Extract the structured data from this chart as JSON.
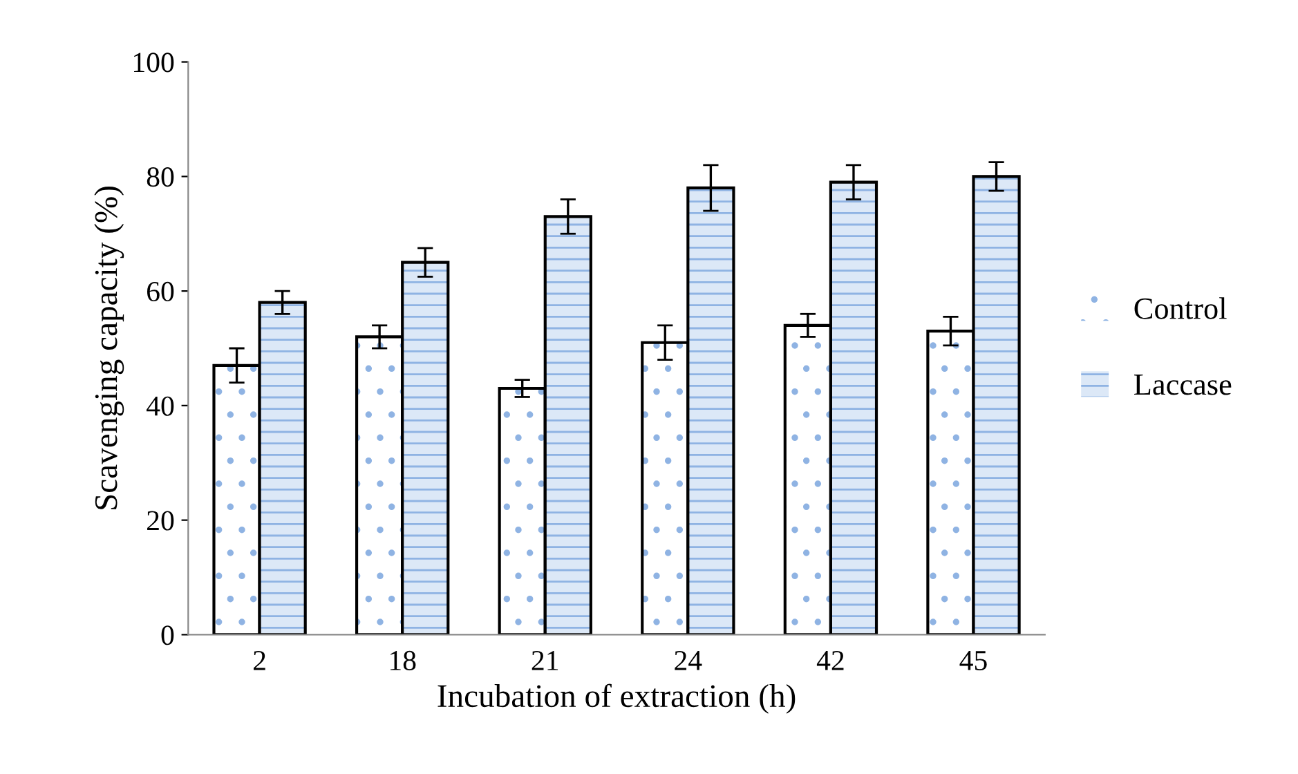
{
  "chart_data": {
    "type": "bar",
    "xlabel": "Incubation of extraction (h)",
    "ylabel": "Scavenging capacity (%)",
    "categories": [
      "2",
      "18",
      "21",
      "24",
      "42",
      "45"
    ],
    "series": [
      {
        "name": "Control",
        "color": "#ffffff",
        "values": [
          47,
          52,
          43,
          51,
          54,
          53
        ],
        "errors": [
          3,
          2,
          1.5,
          3,
          2,
          2.5
        ]
      },
      {
        "name": "Laccase",
        "color": "#dce8f7",
        "values": [
          58,
          65,
          73,
          78,
          79,
          80
        ],
        "errors": [
          2,
          2.5,
          3,
          4,
          3,
          2.5
        ]
      }
    ],
    "ylim": [
      0,
      100
    ],
    "yticks": [
      0,
      20,
      40,
      60,
      80,
      100
    ],
    "grid": false,
    "legend": "right"
  }
}
